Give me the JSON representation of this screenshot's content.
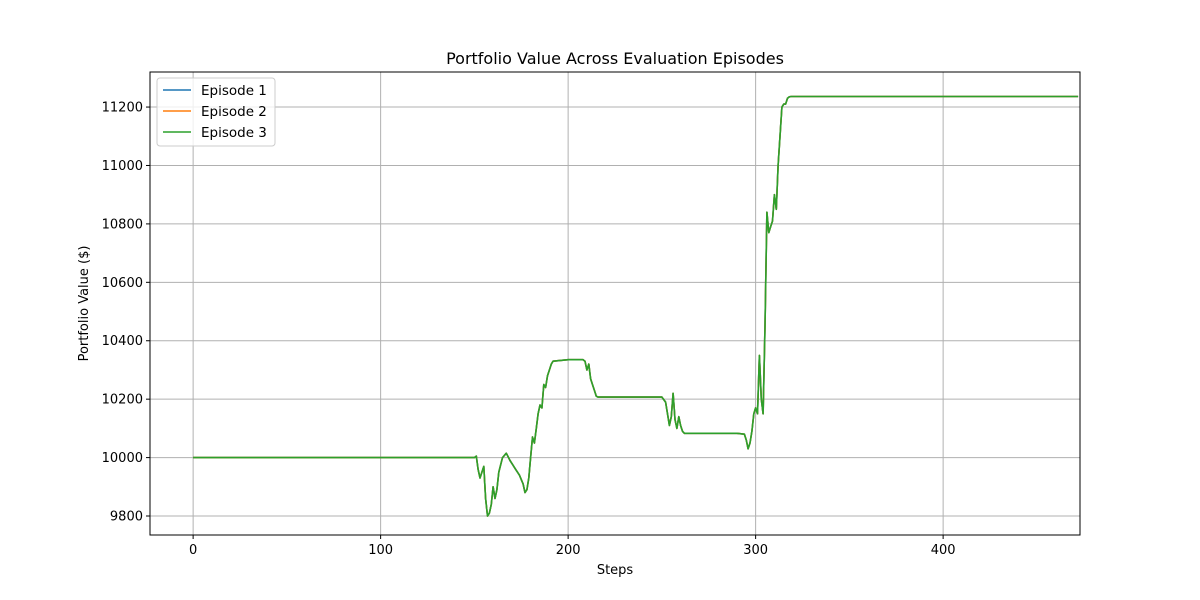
{
  "chart_data": {
    "type": "line",
    "title": "Portfolio Value Across Evaluation Episodes",
    "xlabel": "Steps",
    "ylabel": "Portfolio Value ($)",
    "xlim": [
      -23,
      473
    ],
    "ylim": [
      9735,
      11320
    ],
    "xticks": [
      0,
      100,
      200,
      300,
      400
    ],
    "yticks": [
      9800,
      10000,
      10200,
      10400,
      10600,
      10800,
      11000,
      11200
    ],
    "grid": true,
    "legend_position": "top-left",
    "x": [
      0,
      100,
      150,
      151,
      152,
      153,
      155,
      156,
      157,
      158,
      159,
      160,
      161,
      162,
      163,
      165,
      167,
      169,
      170,
      172,
      174,
      176,
      177,
      178,
      179,
      180,
      181,
      182,
      183,
      184,
      185,
      186,
      187,
      188,
      189,
      190,
      191,
      192,
      200,
      208,
      209,
      210,
      211,
      212,
      213,
      214,
      215,
      216,
      217,
      230,
      240,
      250,
      252,
      253,
      254,
      255,
      256,
      257,
      258,
      259,
      260,
      261,
      262,
      264,
      270,
      280,
      290,
      294,
      295,
      296,
      297,
      298,
      299,
      300,
      301,
      302,
      303,
      304,
      305,
      306,
      307,
      308,
      309,
      310,
      311,
      312,
      313,
      314,
      315,
      316,
      317,
      318,
      319,
      320,
      330,
      400,
      472
    ],
    "series": [
      {
        "name": "Episode 1",
        "color": "#1f77b4",
        "values": [
          10000,
          10000,
          10000,
          10005,
          9960,
          9930,
          9970,
          9860,
          9800,
          9810,
          9840,
          9900,
          9860,
          9890,
          9950,
          10000,
          10015,
          9990,
          9980,
          9960,
          9940,
          9910,
          9880,
          9890,
          9930,
          10000,
          10070,
          10050,
          10100,
          10150,
          10180,
          10170,
          10250,
          10240,
          10280,
          10300,
          10320,
          10330,
          10335,
          10335,
          10330,
          10300,
          10320,
          10270,
          10250,
          10230,
          10210,
          10207,
          10207,
          10207,
          10207,
          10207,
          10190,
          10150,
          10110,
          10140,
          10220,
          10130,
          10100,
          10140,
          10110,
          10090,
          10083,
          10083,
          10083,
          10083,
          10083,
          10080,
          10060,
          10030,
          10050,
          10090,
          10150,
          10170,
          10150,
          10350,
          10200,
          10150,
          10450,
          10840,
          10770,
          10790,
          10810,
          10900,
          10850,
          11000,
          11100,
          11200,
          11210,
          11210,
          11230,
          11235,
          11236,
          11236,
          11236,
          11236,
          11236
        ]
      },
      {
        "name": "Episode 2",
        "color": "#ff7f0e",
        "values": [
          10000,
          10000,
          10000,
          10005,
          9960,
          9930,
          9970,
          9860,
          9800,
          9810,
          9840,
          9900,
          9860,
          9890,
          9950,
          10000,
          10015,
          9990,
          9980,
          9960,
          9940,
          9910,
          9880,
          9890,
          9930,
          10000,
          10070,
          10050,
          10100,
          10150,
          10180,
          10170,
          10250,
          10240,
          10280,
          10300,
          10320,
          10330,
          10335,
          10335,
          10330,
          10300,
          10320,
          10270,
          10250,
          10230,
          10210,
          10207,
          10207,
          10207,
          10207,
          10207,
          10190,
          10150,
          10110,
          10140,
          10220,
          10130,
          10100,
          10140,
          10110,
          10090,
          10083,
          10083,
          10083,
          10083,
          10083,
          10080,
          10060,
          10030,
          10050,
          10090,
          10150,
          10170,
          10150,
          10350,
          10200,
          10150,
          10450,
          10840,
          10770,
          10790,
          10810,
          10900,
          10850,
          11000,
          11100,
          11200,
          11210,
          11210,
          11230,
          11235,
          11236,
          11236,
          11236,
          11236,
          11236
        ]
      },
      {
        "name": "Episode 3",
        "color": "#2ca02c",
        "values": [
          10000,
          10000,
          10000,
          10005,
          9960,
          9930,
          9970,
          9860,
          9800,
          9810,
          9840,
          9900,
          9860,
          9890,
          9950,
          10000,
          10015,
          9990,
          9980,
          9960,
          9940,
          9910,
          9880,
          9890,
          9930,
          10000,
          10070,
          10050,
          10100,
          10150,
          10180,
          10170,
          10250,
          10240,
          10280,
          10300,
          10320,
          10330,
          10335,
          10335,
          10330,
          10300,
          10320,
          10270,
          10250,
          10230,
          10210,
          10207,
          10207,
          10207,
          10207,
          10207,
          10190,
          10150,
          10110,
          10140,
          10220,
          10130,
          10100,
          10140,
          10110,
          10090,
          10083,
          10083,
          10083,
          10083,
          10083,
          10080,
          10060,
          10030,
          10050,
          10090,
          10150,
          10170,
          10150,
          10350,
          10200,
          10150,
          10450,
          10840,
          10770,
          10790,
          10810,
          10900,
          10850,
          11000,
          11100,
          11200,
          11210,
          11210,
          11230,
          11235,
          11236,
          11236,
          11236,
          11236,
          11236
        ]
      }
    ]
  }
}
